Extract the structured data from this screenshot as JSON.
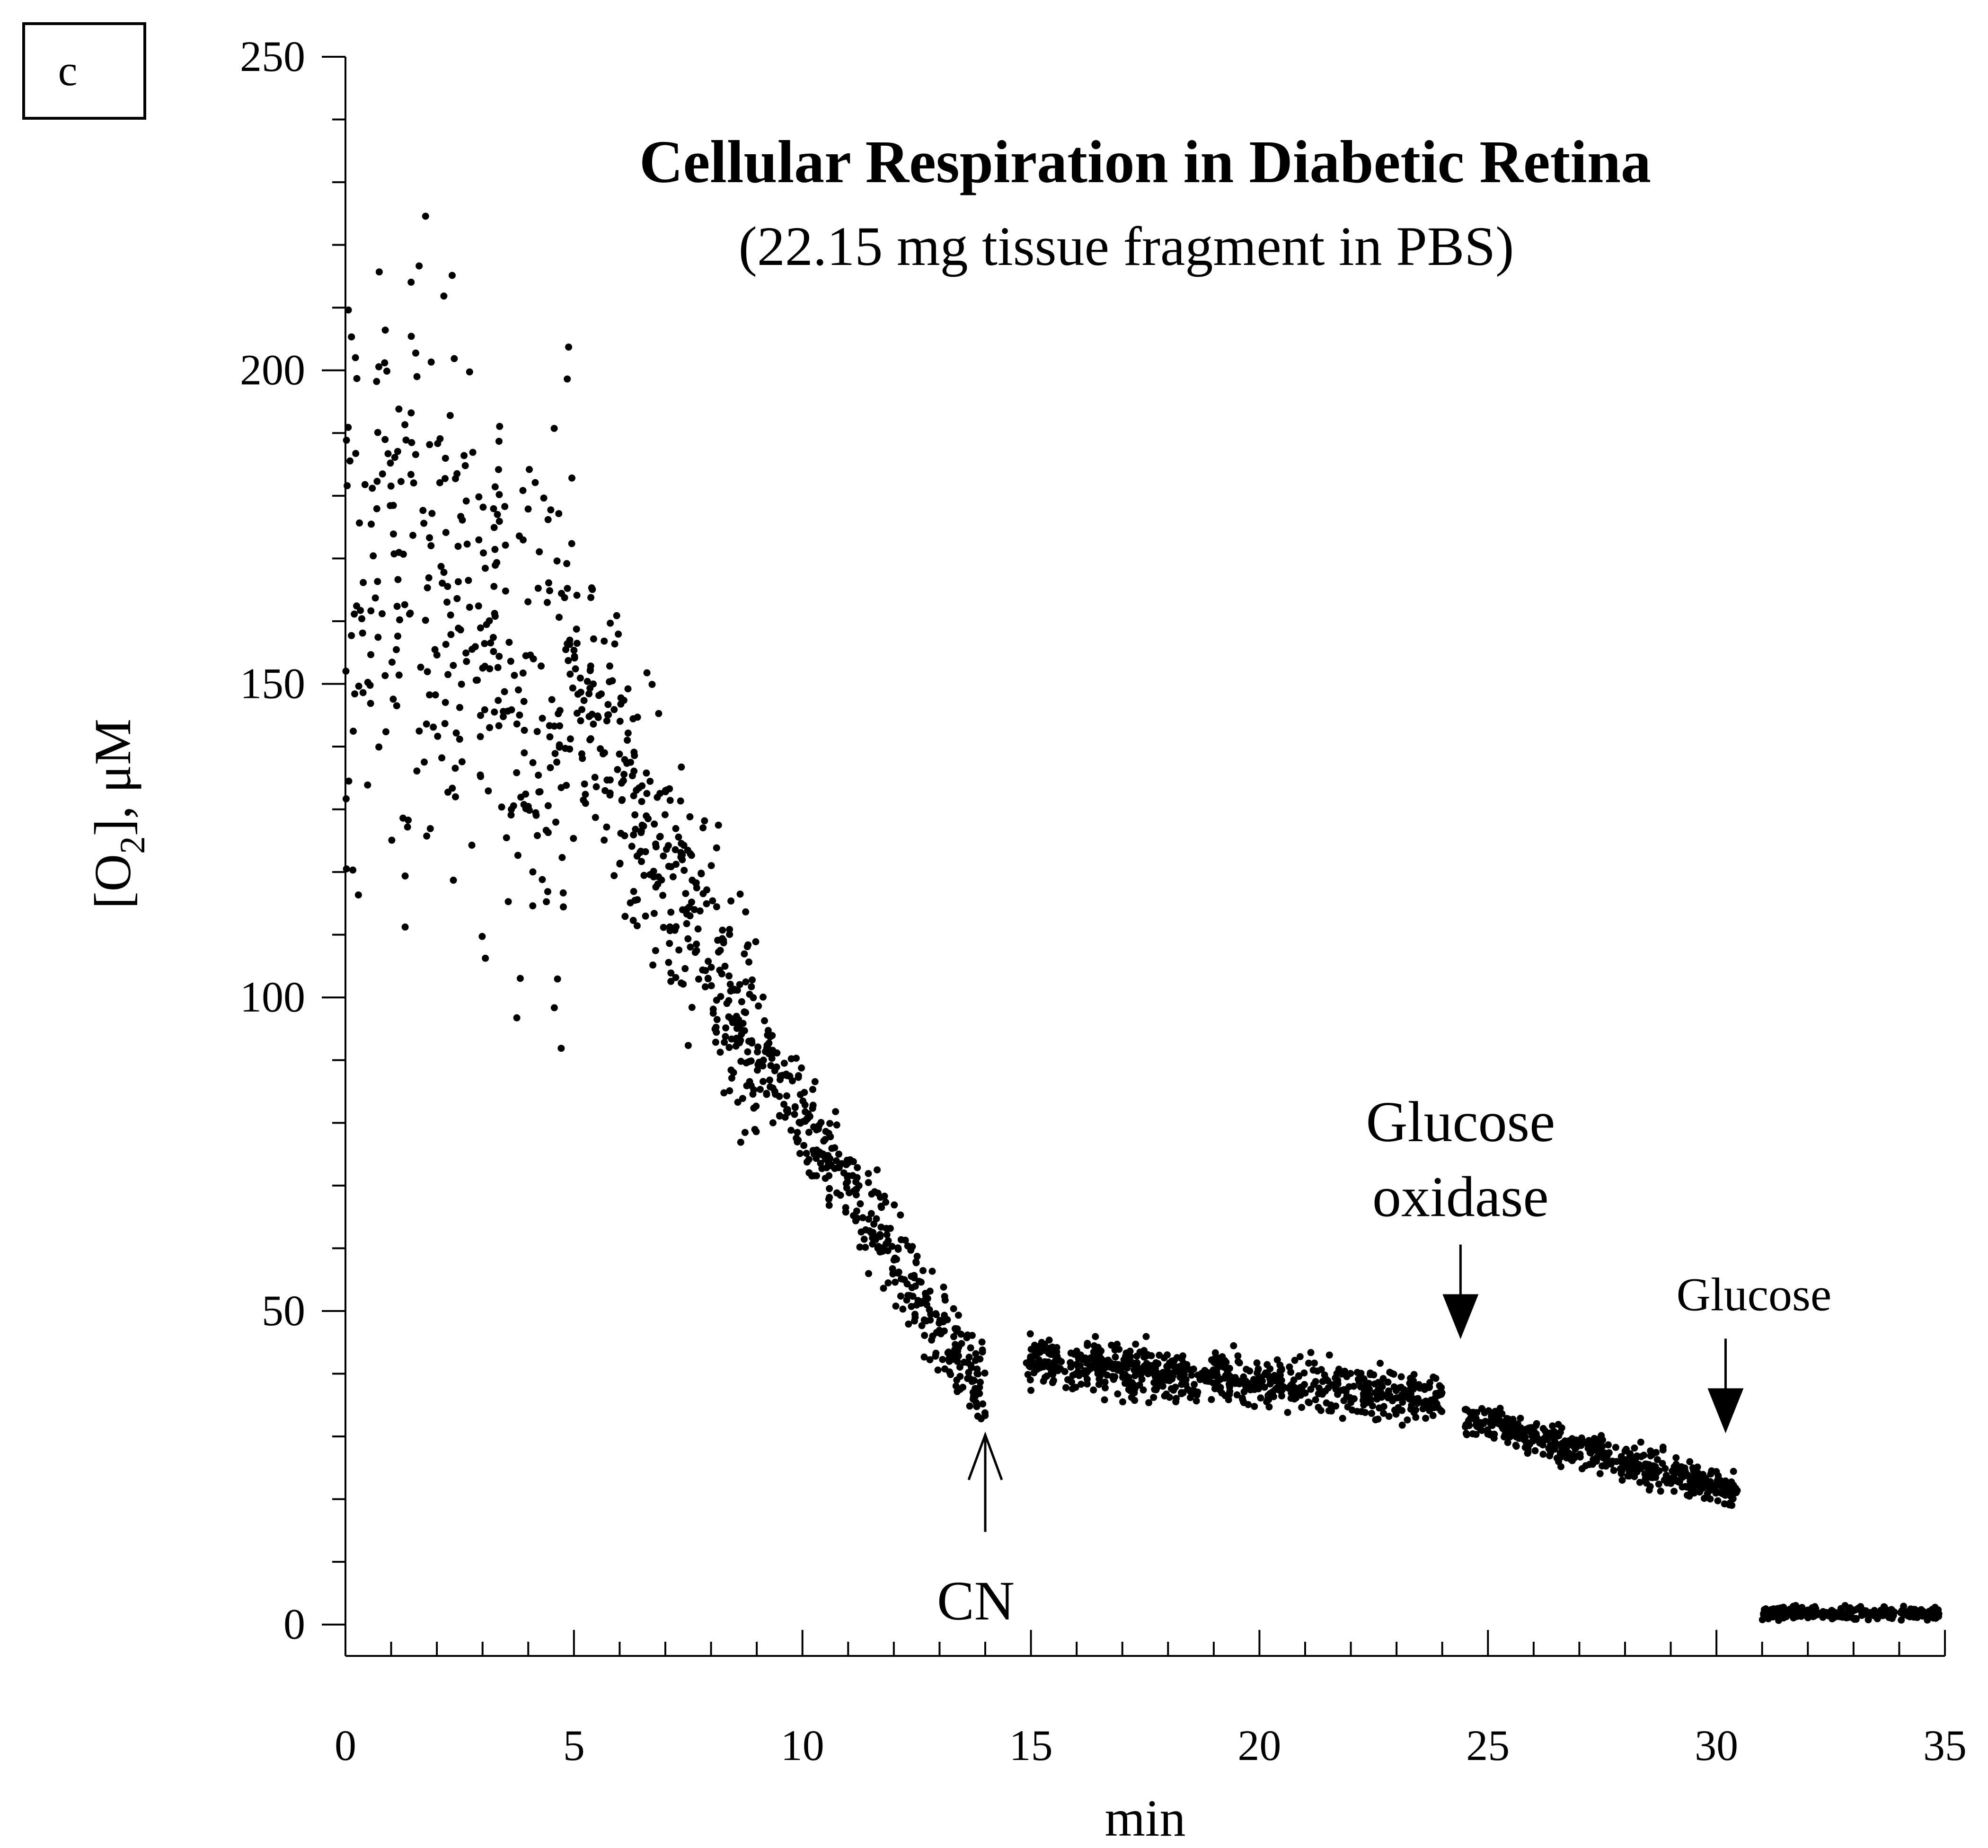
{
  "chart_data": {
    "type": "scatter",
    "panel_label": "c",
    "title": "Cellular Respiration in Diabetic Retina",
    "subtitle": "(22.15 mg tissue fragment in PBS)",
    "xlabel": "min",
    "ylabel_main": "[O",
    "ylabel_sub": "2",
    "ylabel_tail": "], μM",
    "xlim": [
      0,
      35
    ],
    "ylim": [
      -5,
      250
    ],
    "x_ticks": [
      {
        "value": 0,
        "label": "0"
      },
      {
        "value": 5,
        "label": "5"
      },
      {
        "value": 10,
        "label": "10"
      },
      {
        "value": 15,
        "label": "15"
      },
      {
        "value": 20,
        "label": "20"
      },
      {
        "value": 25,
        "label": "25"
      },
      {
        "value": 30,
        "label": "30"
      },
      {
        "value": 35,
        "label": "35"
      }
    ],
    "y_ticks": [
      {
        "value": 0,
        "label": "0"
      },
      {
        "value": 50,
        "label": "50"
      },
      {
        "value": 100,
        "label": "100"
      },
      {
        "value": 150,
        "label": "150"
      },
      {
        "value": 200,
        "label": "200"
      },
      {
        "value": 250,
        "label": "250"
      }
    ],
    "x_minor_step": 1,
    "y_minor_step": 10,
    "grid": false,
    "marker_color": "#000000",
    "series_segments": [
      {
        "x_start": 0.0,
        "x_end": 5.0,
        "y_start": 170,
        "y_end": 150,
        "spread": 42,
        "count": 340
      },
      {
        "x_start": 5.0,
        "x_end": 9.0,
        "y_start": 150,
        "y_end": 92,
        "spread": 18,
        "count": 330
      },
      {
        "x_start": 9.0,
        "x_end": 14.0,
        "y_start": 92,
        "y_end": 37,
        "spread": 7,
        "count": 380
      },
      {
        "x_start": 14.9,
        "x_end": 24.0,
        "y_start": 42,
        "y_end": 36,
        "spread": 3.5,
        "count": 720
      },
      {
        "x_start": 24.5,
        "x_end": 30.5,
        "y_start": 33,
        "y_end": 21,
        "spread": 2.5,
        "count": 480
      },
      {
        "x_start": 31.0,
        "x_end": 34.9,
        "y_start": 1.8,
        "y_end": 1.8,
        "spread": 0.9,
        "count": 320
      }
    ],
    "annotations": [
      {
        "id": "cn",
        "lines": [
          "CN"
        ],
        "x": 14.0,
        "y": 31,
        "arrow": "up-open"
      },
      {
        "id": "glucose-oxidase",
        "lines": [
          "Glucose",
          "oxidase"
        ],
        "x": 24.4,
        "y": 44,
        "arrow": "down-filled"
      },
      {
        "id": "glucose",
        "lines": [
          "Glucose"
        ],
        "x": 30.2,
        "y": 29,
        "arrow": "down-filled"
      }
    ]
  }
}
